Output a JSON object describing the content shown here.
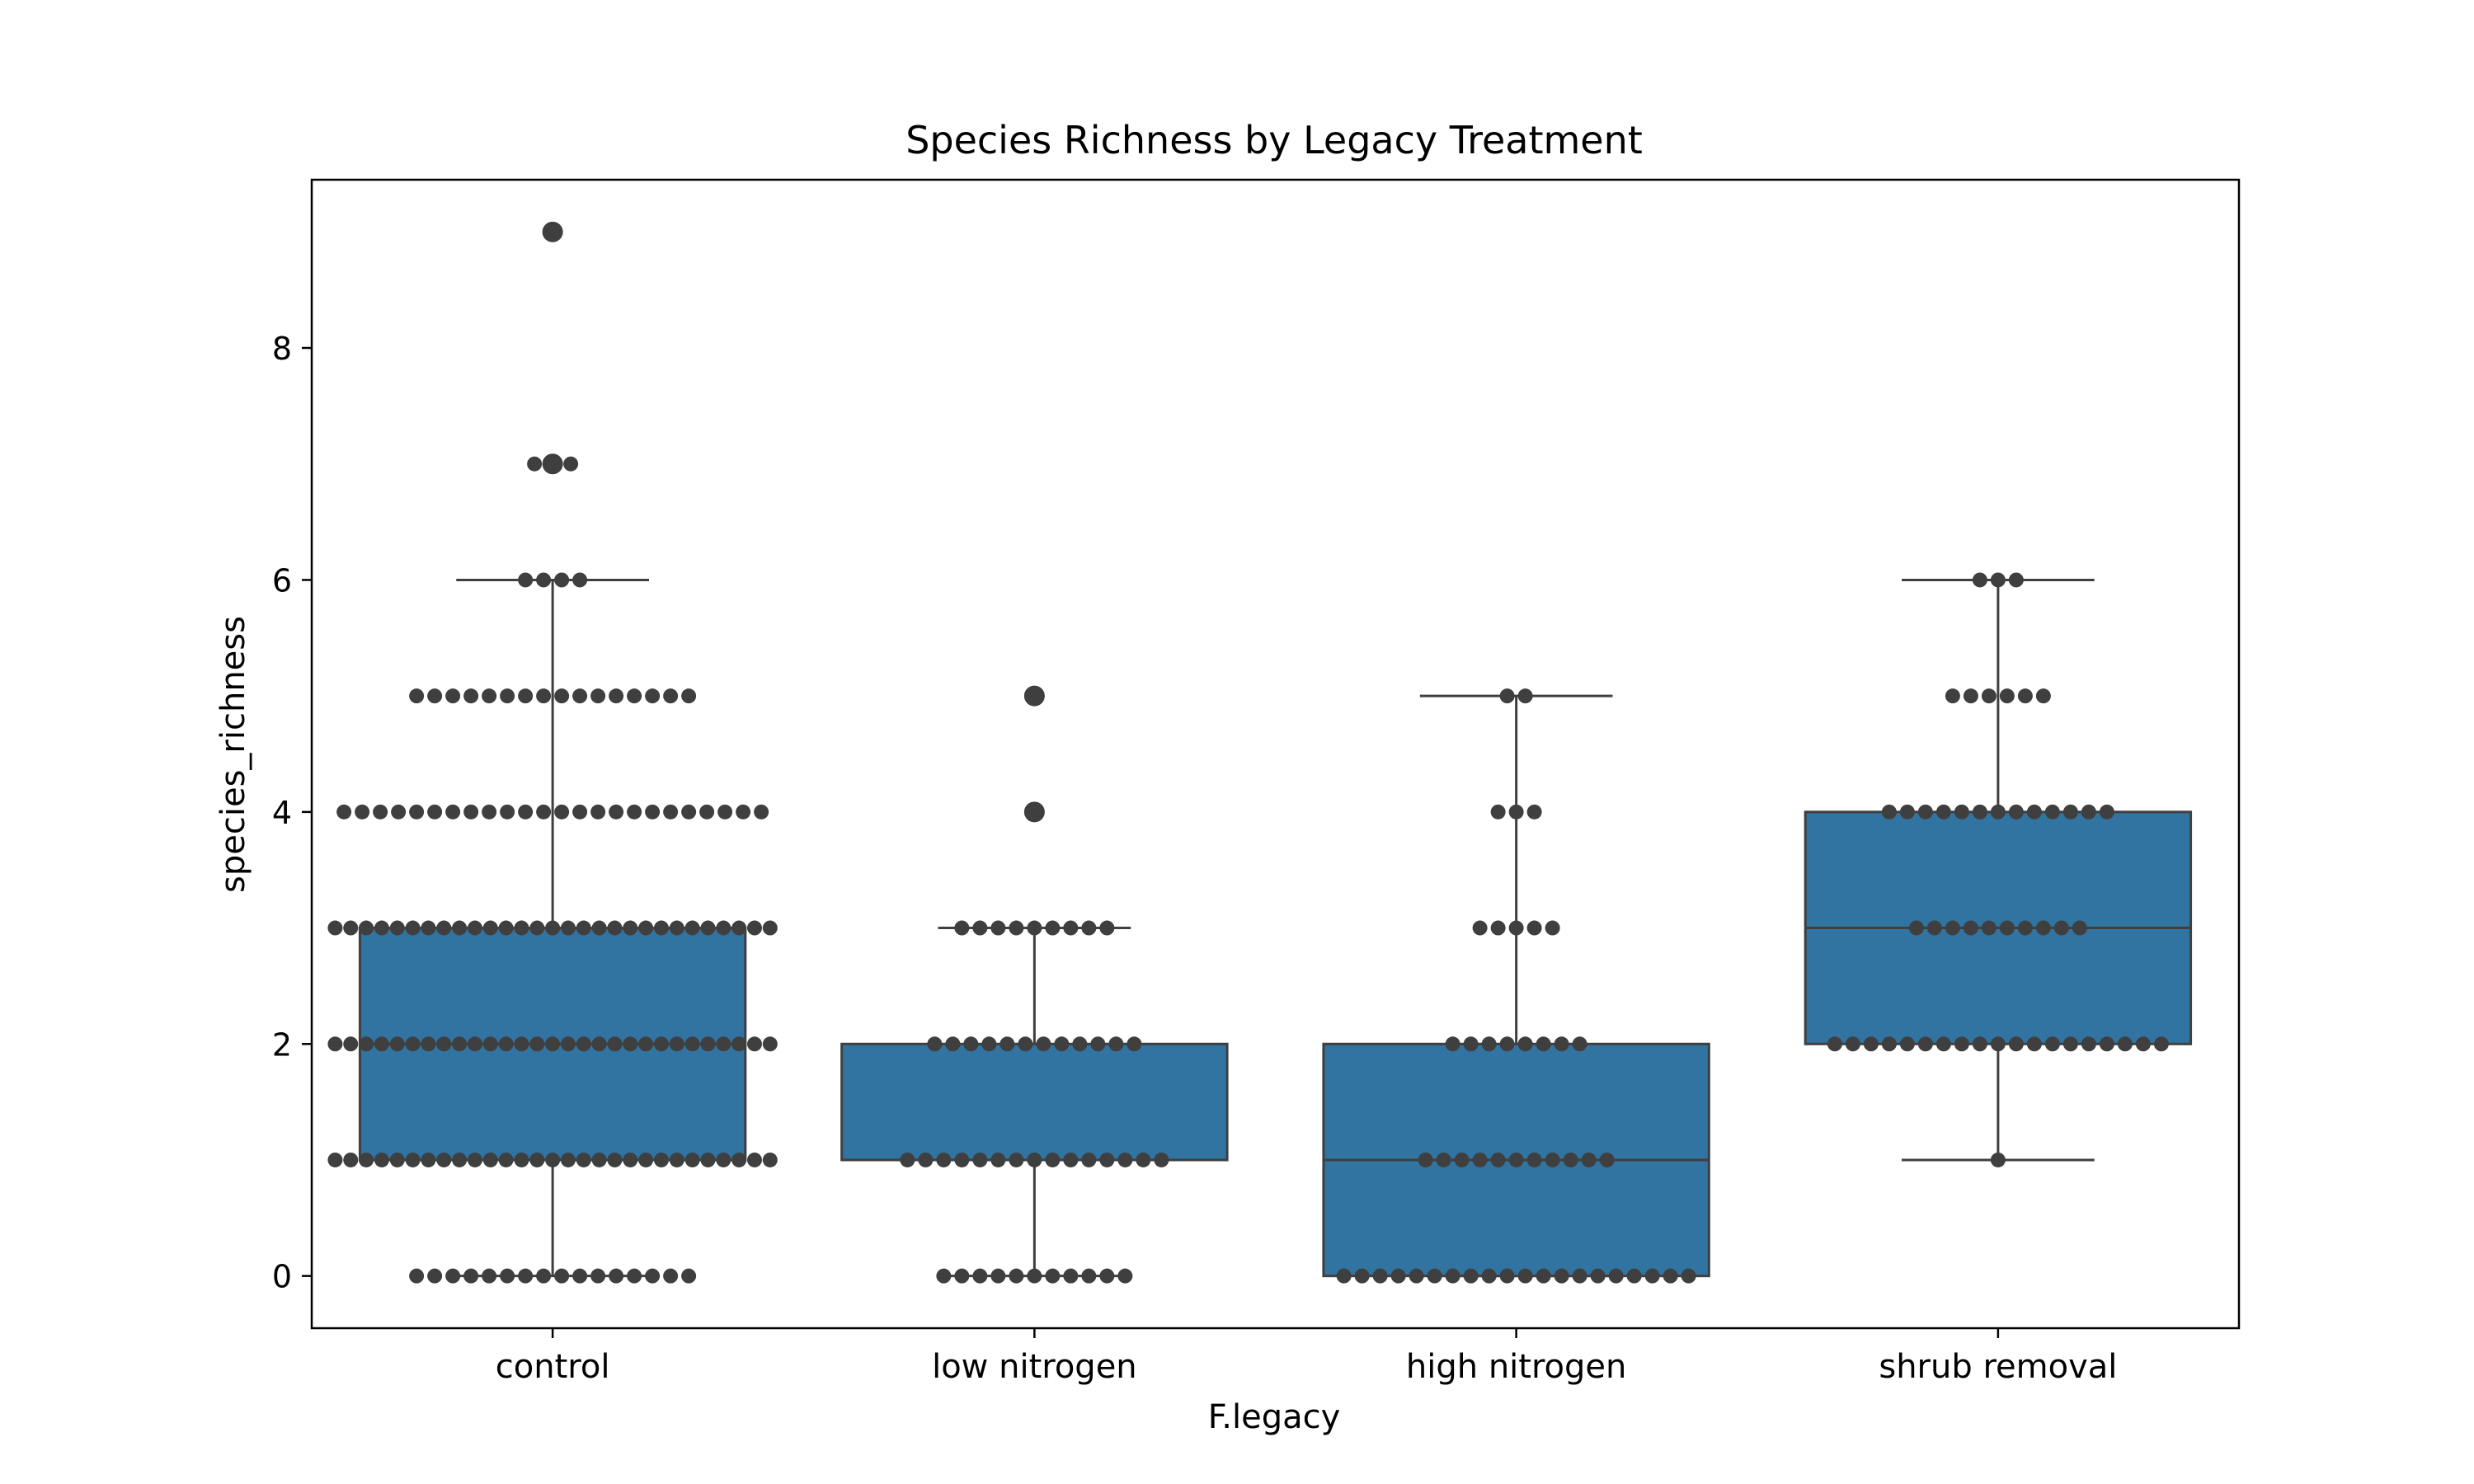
{
  "chart_data": {
    "type": "box",
    "title": "Species Richness by Legacy Treatment",
    "xlabel": "F.legacy",
    "ylabel": "species_richness",
    "ylim": [
      -0.45,
      9.45
    ],
    "yticks": [
      0,
      2,
      4,
      6,
      8
    ],
    "grid": false,
    "colors": {
      "box": "#3274a1",
      "line": "#3f3f3f",
      "point": "#3f3f3f",
      "axes": "#000000"
    },
    "categories": [
      "control",
      "low nitrogen",
      "high nitrogen",
      "shrub removal"
    ],
    "boxes": [
      {
        "category": "control",
        "whisker_low": 0,
        "q1": 1,
        "median": 2,
        "q3": 3,
        "whisker_high": 6
      },
      {
        "category": "low nitrogen",
        "whisker_low": 0,
        "q1": 1,
        "median": 1,
        "q3": 2,
        "whisker_high": 3
      },
      {
        "category": "high nitrogen",
        "whisker_low": 0,
        "q1": 0,
        "median": 1,
        "q3": 2,
        "whisker_high": 5
      },
      {
        "category": "shrub removal",
        "whisker_low": 1,
        "q1": 2,
        "median": 3,
        "q3": 4,
        "whisker_high": 6
      }
    ],
    "outliers": [
      {
        "category": "control",
        "values": [
          7,
          9
        ]
      },
      {
        "category": "low nitrogen",
        "values": [
          4,
          5
        ]
      },
      {
        "category": "high nitrogen",
        "values": []
      },
      {
        "category": "shrub removal",
        "values": []
      }
    ],
    "swarm_counts": [
      {
        "category": "control",
        "counts": {
          "0": 16,
          "1": 29,
          "2": 29,
          "3": 29,
          "4": 24,
          "5": 16,
          "6": 4,
          "7": 3,
          "9": 1
        }
      },
      {
        "category": "low nitrogen",
        "counts": {
          "0": 11,
          "1": 15,
          "2": 12,
          "3": 9,
          "4": 1,
          "5": 1
        }
      },
      {
        "category": "high nitrogen",
        "counts": {
          "0": 20,
          "1": 11,
          "2": 8,
          "3": 5,
          "4": 3,
          "5": 2
        }
      },
      {
        "category": "shrub removal",
        "counts": {
          "1": 1,
          "2": 19,
          "3": 10,
          "4": 13,
          "5": 6,
          "6": 3
        }
      }
    ]
  }
}
